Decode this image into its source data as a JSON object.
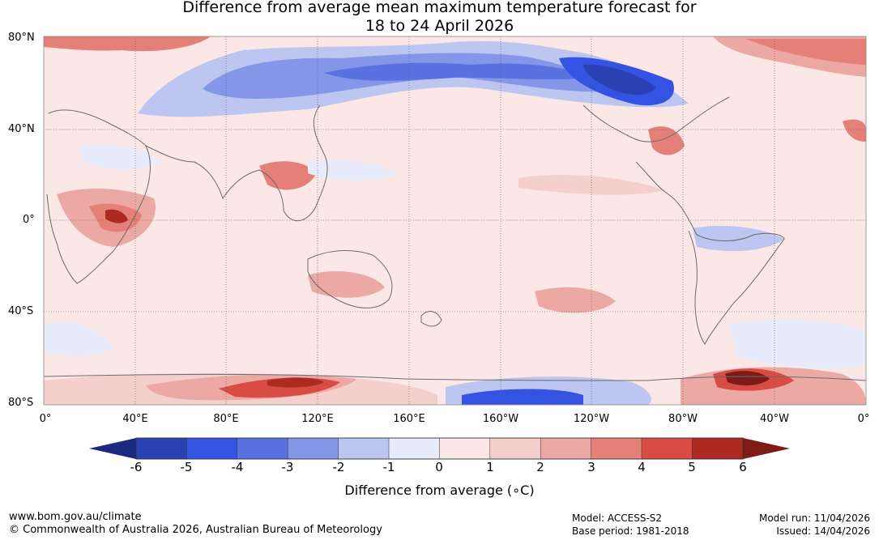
{
  "title": {
    "line1": "Difference from average mean maximum temperature forecast for",
    "line2": "18 to 24 April 2026"
  },
  "map": {
    "lat_labels": [
      "80°N",
      "40°N",
      "0°",
      "40°S",
      "80°S"
    ],
    "lon_labels": [
      "0°",
      "40°E",
      "80°E",
      "120°E",
      "160°E",
      "160°W",
      "120°W",
      "80°W",
      "40°W",
      "0°"
    ]
  },
  "colorbar": {
    "ticks": [
      "-6",
      "-5",
      "-4",
      "-3",
      "-2",
      "-1",
      "0",
      "1",
      "2",
      "3",
      "4",
      "5",
      "6"
    ],
    "colors": [
      "#1a2a80",
      "#2a41b3",
      "#3553e2",
      "#5a72e0",
      "#8396e8",
      "#bcc6f1",
      "#e7ebfb",
      "#fbe8e6",
      "#f5cfcb",
      "#eca8a3",
      "#e58079",
      "#d84c44",
      "#ad2a22",
      "#7d1c16"
    ],
    "label": "Difference from average (∘C)"
  },
  "footer": {
    "url": "www.bom.gov.au/climate",
    "copyright": "© Commonwealth of Australia 2026, Australian Bureau of Meteorology",
    "model": "Model: ACCESS-S2",
    "base_period": "Base period: 1981-2018",
    "model_run": "Model run: 11/04/2026",
    "issued": "Issued: 14/04/2026"
  }
}
